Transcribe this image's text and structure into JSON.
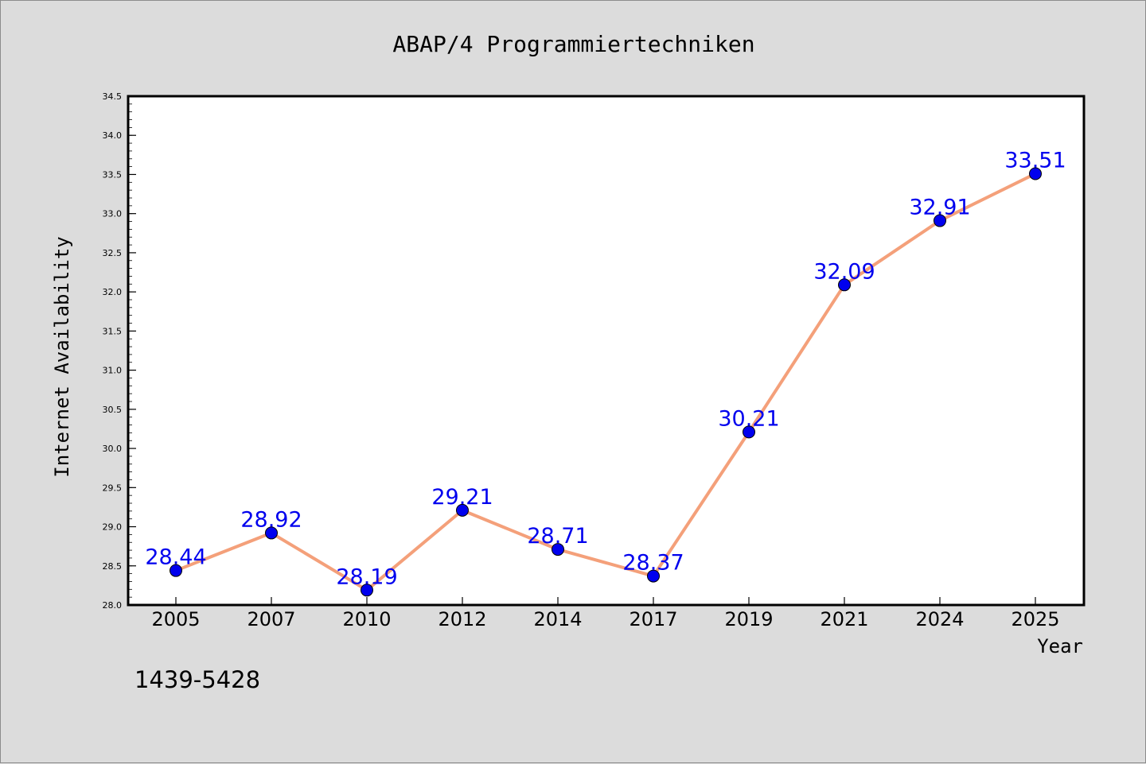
{
  "chart_data": {
    "type": "line",
    "title": "ABAP/4 Programmiertechniken",
    "xlabel": "Year",
    "ylabel": "Internet Availability",
    "categories": [
      "2005",
      "2007",
      "2010",
      "2012",
      "2014",
      "2017",
      "2019",
      "2021",
      "2024",
      "2025"
    ],
    "series": [
      {
        "values": [
          28.44,
          28.92,
          28.19,
          29.21,
          28.71,
          28.37,
          30.21,
          32.09,
          32.91,
          33.51
        ],
        "labels": [
          "28.44",
          "28.92",
          "28.19",
          "29.21",
          "28.71",
          "28.37",
          "30.21",
          "32.09",
          "32.91",
          "33.51"
        ],
        "line_color": "#f4a07a",
        "marker_color": "#0000ee",
        "label_color": "#0000ee"
      }
    ],
    "yticks": [
      "28.0",
      "28.5",
      "29.0",
      "29.5",
      "30.0",
      "30.5",
      "31.0",
      "31.5",
      "32.0",
      "32.5",
      "33.0",
      "33.5",
      "34.0",
      "34.5"
    ],
    "ylim": [
      28.0,
      34.5
    ],
    "grid": false,
    "annotation": "1439-5428"
  },
  "colors": {
    "background": "#dcdcdc",
    "plot_area": "#ffffff",
    "axis": "#000000"
  }
}
